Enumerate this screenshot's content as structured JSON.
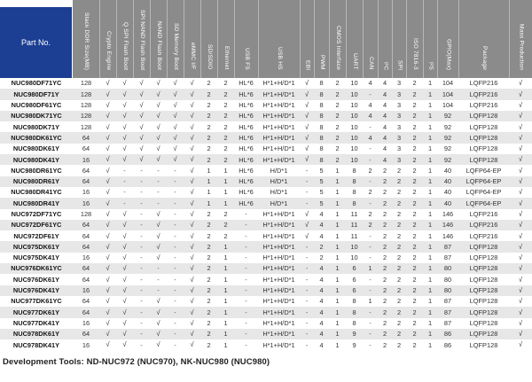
{
  "table": {
    "part_no_header": "Part No.",
    "columns": [
      "Stack DDR Size(MB)",
      "Crypto Engine",
      "Q SPI Flash Boot",
      "SPI NAND Flash Boot",
      "NAND Flash Boot",
      "SD Memory Boot",
      "eMMC I/F",
      "SD/SDIO",
      "Ethernet",
      "USB FS",
      "USB HS",
      "EBI",
      "PWM",
      "CMOS Interface",
      "UART",
      "CAN",
      "I²C",
      "SPI",
      "ISO 7816-3",
      "I²S",
      "GPIO(Max)",
      "Package",
      "Mass Production"
    ],
    "rows": [
      {
        "part": "NUC980DF71YC",
        "values": [
          "128",
          "√",
          "√",
          "√",
          "√",
          "√",
          "√",
          "2",
          "2",
          "HL*6",
          "H*1+H/D*1",
          "√",
          "8",
          "2",
          "10",
          "4",
          "4",
          "3",
          "2",
          "1",
          "104",
          "LQFP216",
          "√"
        ]
      },
      {
        "part": "NUC980DF71Y",
        "values": [
          "128",
          "√",
          "√",
          "√",
          "√",
          "√",
          "√",
          "2",
          "2",
          "HL*6",
          "H*1+H/D*1",
          "√",
          "8",
          "2",
          "10",
          "-",
          "4",
          "3",
          "2",
          "1",
          "104",
          "LQFP216",
          "√"
        ]
      },
      {
        "part": "NUC980DF61YC",
        "values": [
          "128",
          "√",
          "√",
          "√",
          "√",
          "√",
          "√",
          "2",
          "2",
          "HL*6",
          "H*1+H/D*1",
          "√",
          "8",
          "2",
          "10",
          "4",
          "4",
          "3",
          "2",
          "1",
          "104",
          "LQFP216",
          "√"
        ]
      },
      {
        "part": "NUC980DK71YC",
        "values": [
          "128",
          "√",
          "√",
          "√",
          "√",
          "√",
          "√",
          "2",
          "2",
          "HL*6",
          "H*1+H/D*1",
          "√",
          "8",
          "2",
          "10",
          "4",
          "4",
          "3",
          "2",
          "1",
          "92",
          "LQFP128",
          "√"
        ]
      },
      {
        "part": "NUC980DK71Y",
        "values": [
          "128",
          "√",
          "√",
          "√",
          "√",
          "√",
          "√",
          "2",
          "2",
          "HL*6",
          "H*1+H/D*1",
          "√",
          "8",
          "2",
          "10",
          "-",
          "4",
          "3",
          "2",
          "1",
          "92",
          "LQFP128",
          "√"
        ]
      },
      {
        "part": "NUC980DK61YC",
        "values": [
          "64",
          "√",
          "√",
          "√",
          "√",
          "√",
          "√",
          "2",
          "2",
          "HL*6",
          "H*1+H/D*1",
          "√",
          "8",
          "2",
          "10",
          "4",
          "4",
          "3",
          "2",
          "1",
          "92",
          "LQFP128",
          "√"
        ]
      },
      {
        "part": "NUC980DK61Y",
        "values": [
          "64",
          "√",
          "√",
          "√",
          "√",
          "√",
          "√",
          "2",
          "2",
          "HL*6",
          "H*1+H/D*1",
          "√",
          "8",
          "2",
          "10",
          "-",
          "4",
          "3",
          "2",
          "1",
          "92",
          "LQFP128",
          "√"
        ]
      },
      {
        "part": "NUC980DK41Y",
        "values": [
          "16",
          "√",
          "√",
          "√",
          "√",
          "√",
          "√",
          "2",
          "2",
          "HL*6",
          "H*1+H/D*1",
          "√",
          "8",
          "2",
          "10",
          "-",
          "4",
          "3",
          "2",
          "1",
          "92",
          "LQFP128",
          "√"
        ]
      },
      {
        "part": "NUC980DR61YC",
        "values": [
          "64",
          "√",
          "-",
          "-",
          "-",
          "-",
          "√",
          "1",
          "1",
          "HL*6",
          "H/D*1",
          "-",
          "5",
          "1",
          "8",
          "2",
          "2",
          "2",
          "2",
          "1",
          "40",
          "LQFP64-EP",
          "√"
        ]
      },
      {
        "part": "NUC980DR61Y",
        "values": [
          "64",
          "√",
          "-",
          "-",
          "-",
          "-",
          "√",
          "1",
          "1",
          "HL*6",
          "H/D*1",
          "-",
          "5",
          "1",
          "8",
          "-",
          "2",
          "2",
          "2",
          "1",
          "40",
          "LQFP64-EP",
          "√"
        ]
      },
      {
        "part": "NUC980DR41YC",
        "values": [
          "16",
          "√",
          "-",
          "-",
          "-",
          "-",
          "√",
          "1",
          "1",
          "HL*6",
          "H/D*1",
          "-",
          "5",
          "1",
          "8",
          "2",
          "2",
          "2",
          "2",
          "1",
          "40",
          "LQFP64-EP",
          "√"
        ]
      },
      {
        "part": "NUC980DR41Y",
        "values": [
          "16",
          "√",
          "-",
          "-",
          "-",
          "-",
          "√",
          "1",
          "1",
          "HL*6",
          "H/D*1",
          "-",
          "5",
          "1",
          "8",
          "-",
          "2",
          "2",
          "2",
          "1",
          "40",
          "LQFP64-EP",
          "√"
        ]
      },
      {
        "part": "NUC972DF71YC",
        "values": [
          "128",
          "√",
          "√",
          "-",
          "√",
          "-",
          "√",
          "2",
          "2",
          "-",
          "H*1+H/D*1",
          "√",
          "4",
          "1",
          "11",
          "2",
          "2",
          "2",
          "2",
          "1",
          "146",
          "LQFP216",
          "√"
        ]
      },
      {
        "part": "NUC972DF61YC",
        "values": [
          "64",
          "√",
          "√",
          "-",
          "√",
          "-",
          "√",
          "2",
          "2",
          "-",
          "H*1+H/D*1",
          "√",
          "4",
          "1",
          "11",
          "2",
          "2",
          "2",
          "2",
          "1",
          "146",
          "LQFP216",
          "√"
        ]
      },
      {
        "part": "NUC972DF61Y",
        "values": [
          "64",
          "√",
          "√",
          "-",
          "√",
          "-",
          "√",
          "2",
          "2",
          "-",
          "H*1+H/D*1",
          "√",
          "4",
          "1",
          "11",
          "-",
          "2",
          "2",
          "2",
          "1",
          "146",
          "LQFP216",
          "√"
        ]
      },
      {
        "part": "NUC975DK61Y",
        "values": [
          "64",
          "√",
          "√",
          "-",
          "√",
          "-",
          "√",
          "2",
          "1",
          "-",
          "H*1+H/D*1",
          "-",
          "2",
          "1",
          "10",
          "-",
          "2",
          "2",
          "2",
          "1",
          "87",
          "LQFP128",
          "√"
        ]
      },
      {
        "part": "NUC975DK41Y",
        "values": [
          "16",
          "√",
          "√",
          "-",
          "√",
          "-",
          "√",
          "2",
          "1",
          "-",
          "H*1+H/D*1",
          "-",
          "2",
          "1",
          "10",
          "-",
          "2",
          "2",
          "2",
          "1",
          "87",
          "LQFP128",
          "√"
        ]
      },
      {
        "part": "NUC976DK61YC",
        "values": [
          "64",
          "√",
          "√",
          "-",
          "-",
          "-",
          "√",
          "2",
          "1",
          "-",
          "H*1+H/D*1",
          "-",
          "4",
          "1",
          "6",
          "1",
          "2",
          "2",
          "2",
          "1",
          "80",
          "LQFP128",
          "√"
        ]
      },
      {
        "part": "NUC976DK61Y",
        "values": [
          "64",
          "√",
          "√",
          "-",
          "-",
          "-",
          "√",
          "2",
          "1",
          "-",
          "H*1+H/D*1",
          "-",
          "4",
          "1",
          "6",
          "-",
          "2",
          "2",
          "2",
          "1",
          "80",
          "LQFP128",
          "√"
        ]
      },
      {
        "part": "NUC976DK41Y",
        "values": [
          "16",
          "√",
          "√",
          "-",
          "-",
          "-",
          "√",
          "2",
          "1",
          "-",
          "H*1+H/D*1",
          "-",
          "4",
          "1",
          "6",
          "-",
          "2",
          "2",
          "2",
          "1",
          "80",
          "LQFP128",
          "√"
        ]
      },
      {
        "part": "NUC977DK61YC",
        "values": [
          "64",
          "√",
          "√",
          "-",
          "√",
          "-",
          "√",
          "2",
          "1",
          "-",
          "H*1+H/D*1",
          "-",
          "4",
          "1",
          "8",
          "1",
          "2",
          "2",
          "2",
          "1",
          "87",
          "LQFP128",
          "√"
        ]
      },
      {
        "part": "NUC977DK61Y",
        "values": [
          "64",
          "√",
          "√",
          "-",
          "√",
          "-",
          "√",
          "2",
          "1",
          "-",
          "H*1+H/D*1",
          "-",
          "4",
          "1",
          "8",
          "-",
          "2",
          "2",
          "2",
          "1",
          "87",
          "LQFP128",
          "√"
        ]
      },
      {
        "part": "NUC977DK41Y",
        "values": [
          "16",
          "√",
          "√",
          "-",
          "√",
          "-",
          "√",
          "2",
          "1",
          "-",
          "H*1+H/D*1",
          "-",
          "4",
          "1",
          "8",
          "-",
          "2",
          "2",
          "2",
          "1",
          "87",
          "LQFP128",
          "√"
        ]
      },
      {
        "part": "NUC978DK61Y",
        "values": [
          "64",
          "√",
          "√",
          "-",
          "√",
          "-",
          "√",
          "2",
          "1",
          "-",
          "H*1+H/D*1",
          "-",
          "4",
          "1",
          "9",
          "-",
          "2",
          "2",
          "2",
          "1",
          "86",
          "LQFP128",
          "√"
        ]
      },
      {
        "part": "NUC978DK41Y",
        "values": [
          "16",
          "√",
          "√",
          "-",
          "√",
          "-",
          "√",
          "2",
          "1",
          "-",
          "H*1+H/D*1",
          "-",
          "4",
          "1",
          "9",
          "-",
          "2",
          "2",
          "2",
          "1",
          "86",
          "LQFP128",
          "√"
        ]
      }
    ]
  },
  "footer": {
    "text": "Development Tools: ND-NUC972 (NUC970), NK-NUC980 (NUC980)"
  },
  "colors": {
    "part_header_blue": "#1c3f93",
    "header_gray": "#8b8b8b",
    "row_alt_gray": "#e7e7e7",
    "check_mark": "√"
  }
}
